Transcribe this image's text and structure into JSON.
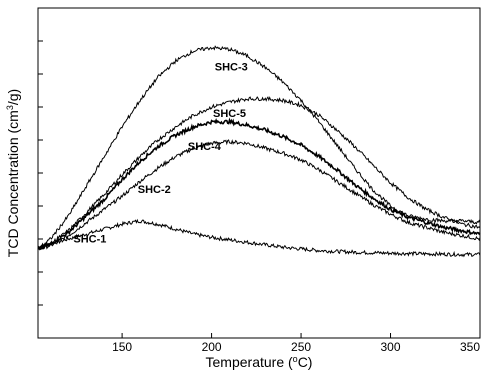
{
  "chart_data": {
    "type": "line",
    "title": "",
    "xlabel": "Temperature (oC)",
    "ylabel": "TCD Concentration (cm3/g)",
    "xlim": [
      103,
      350
    ],
    "ylim": [
      0,
      100
    ],
    "y_ticks_labeled": false,
    "x_ticks": [
      150,
      200,
      250,
      300,
      350
    ],
    "x_tick_labels": [
      "150",
      "200",
      "250",
      "300",
      "350"
    ],
    "grid": false,
    "legend": "inline-labels",
    "series": [
      {
        "name": "SHC-1",
        "x": [
          103,
          110,
          120,
          130,
          140,
          150,
          160,
          170,
          180,
          190,
          200,
          220,
          240,
          260,
          280,
          300,
          320,
          340,
          350
        ],
        "y": [
          27,
          28.5,
          30,
          31.5,
          33,
          34.5,
          35.5,
          34.5,
          33,
          31.5,
          30.5,
          29,
          27.5,
          26.5,
          26,
          25.7,
          25.5,
          25.3,
          25.3
        ]
      },
      {
        "name": "SHC-2",
        "x": [
          103,
          110,
          120,
          130,
          140,
          150,
          160,
          170,
          180,
          190,
          200,
          210,
          220,
          230,
          240,
          250,
          260,
          270,
          280,
          290,
          300,
          310,
          320,
          330,
          340,
          350
        ],
        "y": [
          27,
          28,
          31,
          35,
          39,
          43,
          47.5,
          51.5,
          55,
          57.5,
          59,
          59.5,
          59,
          57.5,
          56,
          54,
          51,
          47.5,
          44,
          40.5,
          37.5,
          35,
          33.5,
          32,
          31,
          30
        ]
      },
      {
        "name": "SHC-4",
        "x": [
          103,
          110,
          120,
          130,
          140,
          150,
          160,
          170,
          180,
          190,
          200,
          210,
          220,
          230,
          240,
          250,
          260,
          270,
          280,
          290,
          300,
          310,
          320,
          330,
          340,
          350
        ],
        "y": [
          27,
          28.5,
          32,
          37,
          42,
          48,
          53.5,
          58,
          61.5,
          64,
          65.5,
          65.5,
          64.5,
          63,
          61,
          58.5,
          55,
          51,
          46.5,
          42.5,
          39,
          36.5,
          35,
          33.5,
          32.5,
          31.5
        ]
      },
      {
        "name": "SHC-5",
        "x": [
          103,
          110,
          120,
          130,
          140,
          150,
          160,
          170,
          180,
          190,
          200,
          210,
          220,
          230,
          240,
          250,
          260,
          270,
          280,
          290,
          300,
          310,
          320,
          330,
          340,
          350
        ],
        "y": [
          27,
          28.5,
          32.5,
          38,
          43.5,
          49.5,
          55,
          60,
          64,
          67.5,
          70,
          71.5,
          72.5,
          72.5,
          72,
          70.5,
          67.5,
          63,
          58,
          52.5,
          47,
          42.5,
          39,
          36.5,
          34.5,
          33.5
        ]
      },
      {
        "name": "SHC-3",
        "x": [
          103,
          110,
          120,
          130,
          140,
          150,
          160,
          170,
          180,
          190,
          200,
          210,
          220,
          230,
          240,
          250,
          260,
          270,
          280,
          290,
          300,
          310,
          320,
          330,
          340,
          350
        ],
        "y": [
          27,
          30,
          37,
          46,
          55,
          64,
          72,
          79,
          84,
          87,
          88,
          87.5,
          85.5,
          82,
          77.5,
          72,
          65.5,
          58.5,
          51.5,
          45,
          40,
          37,
          36,
          35.5,
          35.5,
          35
        ]
      }
    ],
    "annotations": [
      {
        "text": "SHC-3",
        "x": 211,
        "y": 81
      },
      {
        "text": "SHC-5",
        "x": 210,
        "y": 67
      },
      {
        "text": "SHC-4",
        "x": 196,
        "y": 57
      },
      {
        "text": "SHC-2",
        "x": 168,
        "y": 44
      },
      {
        "text": "SHC-1",
        "x": 132,
        "y": 29
      }
    ]
  }
}
